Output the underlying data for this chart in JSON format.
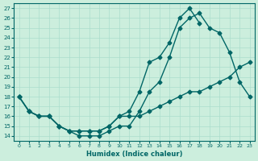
{
  "xlabel": "Humidex (Indice chaleur)",
  "ylabel": "",
  "bg_color": "#cceedd",
  "line_color": "#006666",
  "grid_color": "#aaddcc",
  "xlim": [
    -0.5,
    23.5
  ],
  "ylim": [
    13.5,
    27.5
  ],
  "xticks": [
    0,
    1,
    2,
    3,
    4,
    5,
    6,
    7,
    8,
    9,
    10,
    11,
    12,
    13,
    14,
    15,
    16,
    17,
    18,
    19,
    20,
    21,
    22,
    23
  ],
  "yticks": [
    14,
    15,
    16,
    17,
    18,
    19,
    20,
    21,
    22,
    23,
    24,
    25,
    26,
    27
  ],
  "line1": {
    "x": [
      0,
      1,
      2,
      3,
      4,
      5,
      6,
      7,
      8,
      9,
      10,
      11,
      12,
      13,
      14,
      15,
      16,
      17,
      18,
      19,
      20,
      21,
      22,
      23
    ],
    "y": [
      18,
      16.5,
      16,
      16,
      15,
      14.5,
      14,
      14,
      14,
      14.5,
      15,
      15,
      16.5,
      18.5,
      19.5,
      22,
      25,
      26,
      26.5,
      25,
      24.5,
      22.5,
      19.5,
      18
    ]
  },
  "line2": {
    "x": [
      0,
      1,
      2,
      3,
      4,
      5,
      6,
      7,
      8,
      9,
      10,
      11,
      12,
      13,
      14,
      15,
      16,
      17,
      18,
      19,
      20,
      21,
      22,
      23
    ],
    "y": [
      18,
      16.5,
      16,
      16,
      15,
      14.5,
      14.5,
      14.5,
      14.5,
      15,
      16,
      16,
      16,
      16.5,
      17,
      17.5,
      18,
      18.5,
      18.5,
      19,
      19.5,
      20,
      21,
      21.5
    ]
  },
  "line3": {
    "x": [
      0,
      1,
      2,
      3,
      4,
      5,
      6,
      7,
      8,
      9,
      10,
      11,
      12,
      13,
      14,
      15,
      16,
      17,
      18
    ],
    "y": [
      18,
      16.5,
      16,
      16,
      15,
      14.5,
      14.5,
      14.5,
      14.5,
      15,
      16,
      16.5,
      18.5,
      21.5,
      22,
      23.5,
      26,
      27,
      25.5
    ]
  }
}
